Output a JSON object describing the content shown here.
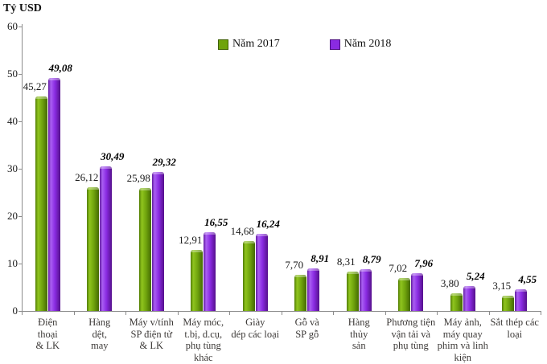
{
  "chart_data": {
    "type": "bar",
    "title": "Tỷ USD",
    "ylabel": "Tỷ USD",
    "xlabel": "",
    "ylim": [
      0,
      60
    ],
    "yticks": [
      0,
      10,
      20,
      30,
      40,
      50,
      60
    ],
    "grid": false,
    "legend_position": "top-center",
    "categories": [
      "Điện thoại & LK",
      "Hàng dệt, may",
      "Máy v/tính SP điện tử & LK",
      "Máy móc, t.bị, d.cụ, phụ tùng khác",
      "Giày dép các loại",
      "Gỗ và SP gỗ",
      "Hàng thủy sản",
      "Phương tiện vận tải và phụ tùng",
      "Máy ảnh, máy quay phim và linh kiện",
      "Sắt thép các loại"
    ],
    "category_display": [
      "Điện\nthoại\n& LK",
      "Hàng\ndệt,\nmay",
      "Máy v/tính\nSP điện tử\n& LK",
      "Máy móc,\nt.bị, d.cụ,\nphụ tùng\nkhác",
      "Giày\ndép các loại",
      "Gỗ và\nSP gỗ",
      "Hàng\nthủy\nsản",
      "Phương tiện\nvận tải và\nphụ tùng",
      "Máy ảnh,\nmáy quay\nphim và linh\nkiện",
      "Sắt thép các\nloại"
    ],
    "series": [
      {
        "name": "Năm 2017",
        "color": "#6fa30c",
        "values": [
          45.27,
          26.12,
          25.98,
          12.91,
          14.68,
          7.7,
          8.31,
          7.02,
          3.8,
          3.15
        ],
        "labels": [
          "45,27",
          "26,12",
          "25,98",
          "12,91",
          "14,68",
          "7,70",
          "8,31",
          "7,02",
          "3,80",
          "3,15"
        ]
      },
      {
        "name": "Năm 2018",
        "color": "#8a2be2",
        "values": [
          49.08,
          30.49,
          29.32,
          16.55,
          16.24,
          8.91,
          8.79,
          7.96,
          5.24,
          4.55
        ],
        "labels": [
          "49,08",
          "30,49",
          "29,32",
          "16,55",
          "16,24",
          "8,91",
          "8,79",
          "7,96",
          "5,24",
          "4,55"
        ]
      }
    ]
  }
}
